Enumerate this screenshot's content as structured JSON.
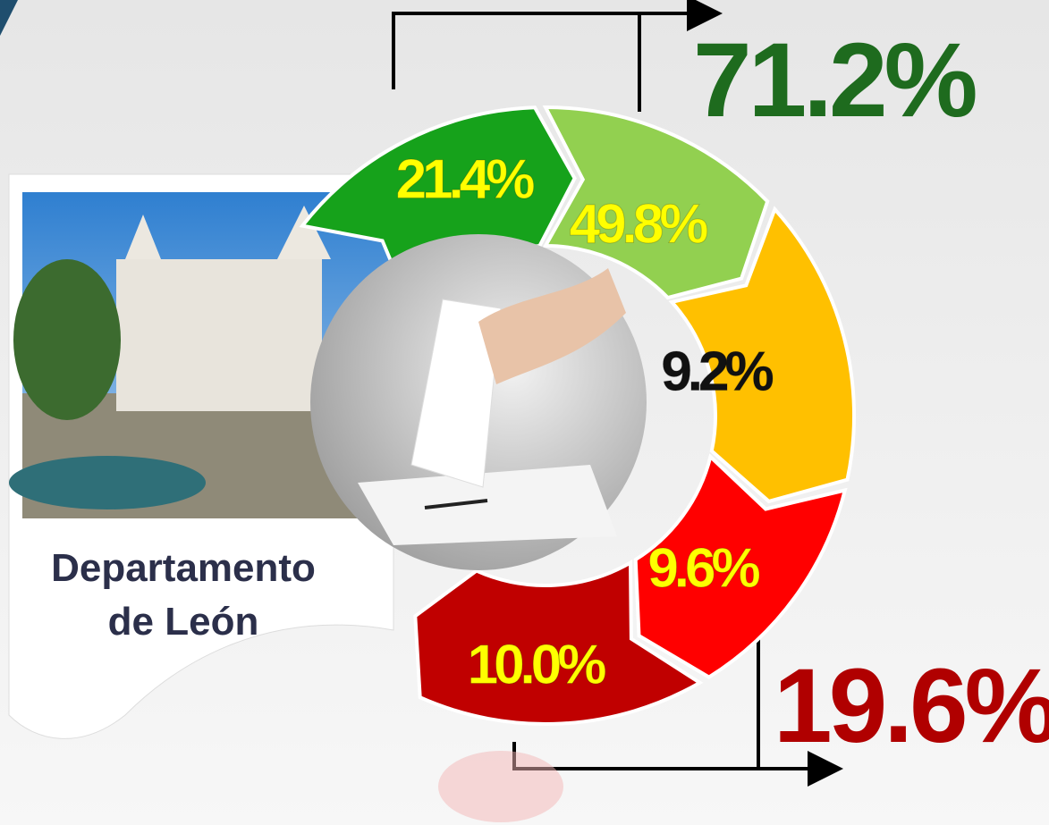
{
  "summary_top": "71.2%",
  "summary_bottom": "19.6%",
  "card": {
    "lines": [
      "Departamento",
      "de León"
    ]
  },
  "segments": [
    {
      "label": "21.4%",
      "color": "#16a21b",
      "label_color": "#ffff00"
    },
    {
      "label": "49.8%",
      "color": "#92d050",
      "label_color": "#ffff00"
    },
    {
      "label": "9.2%",
      "color": "#ffc000",
      "label_color": "#111111"
    },
    {
      "label": "9.6%",
      "color": "#ff0000",
      "label_color": "#ffff00"
    },
    {
      "label": "10.0%",
      "color": "#c00000",
      "label_color": "#ffff00"
    }
  ]
}
